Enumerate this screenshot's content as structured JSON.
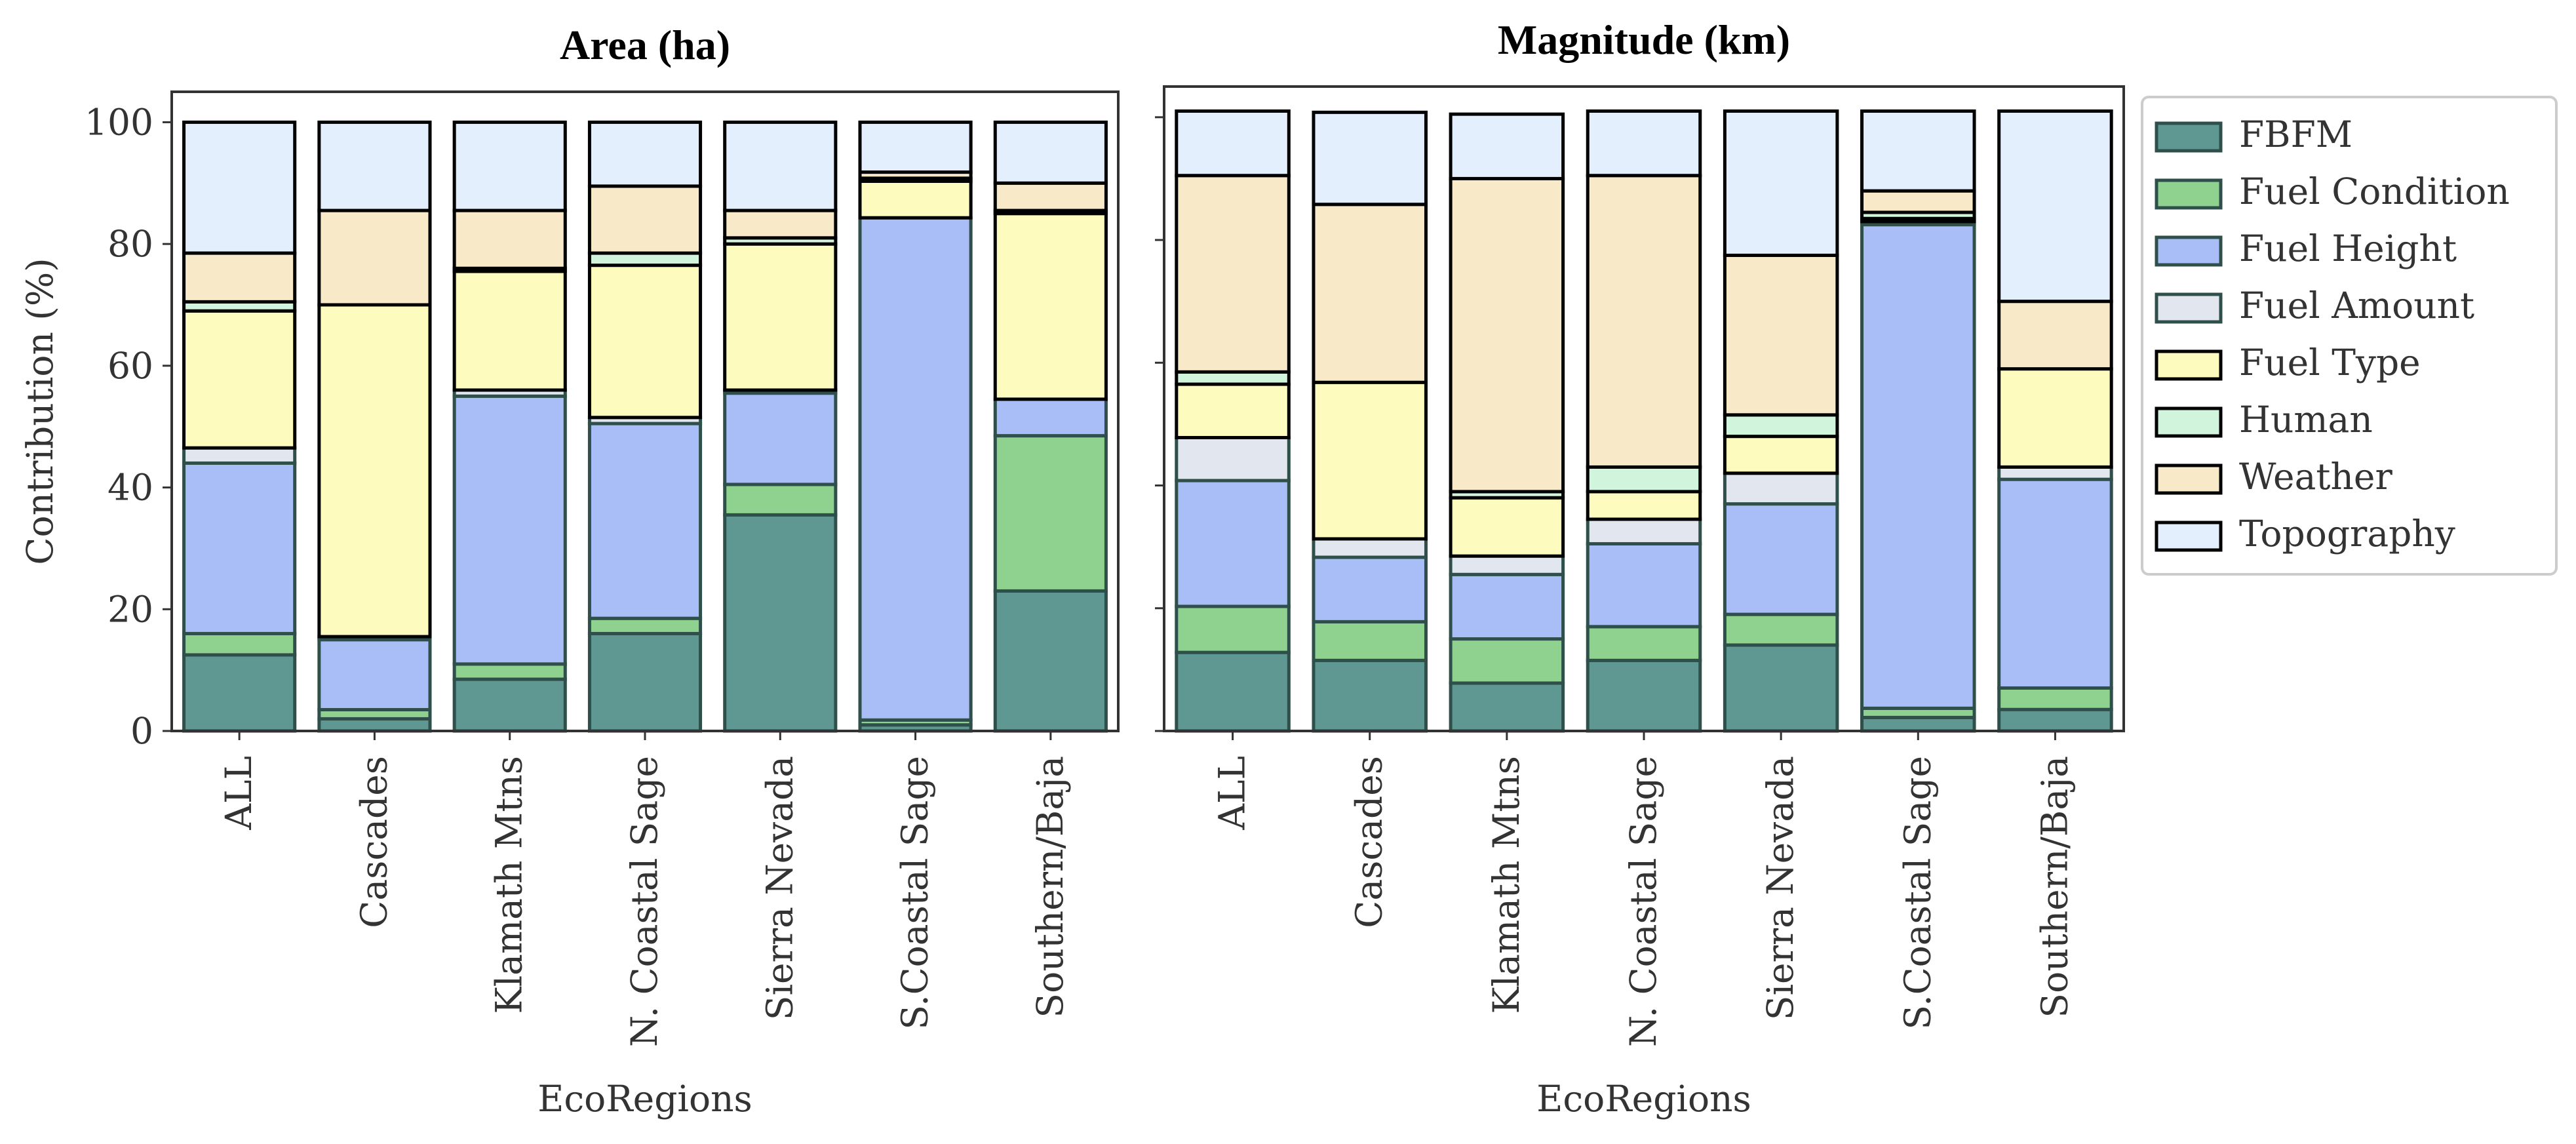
{
  "chart_data": [
    {
      "type": "bar",
      "stacked": true,
      "title": "Area (ha)",
      "xlabel": "EcoRegions",
      "ylabel": "Contribution (%)",
      "ylim": [
        0,
        105
      ],
      "yticks": [
        0,
        20,
        40,
        60,
        80,
        100
      ],
      "grid": false,
      "categories": [
        "ALL",
        "Cascades",
        "Klamath Mtns",
        "N. Coastal Sage",
        "Sierra Nevada",
        "S.Coastal Sage",
        "Southern/Baja"
      ],
      "series": [
        {
          "name": "FBFM",
          "values": [
            12.5,
            2.0,
            8.5,
            16.0,
            35.5,
            1.0,
            23.0
          ]
        },
        {
          "name": "Fuel Condition",
          "values": [
            3.5,
            1.5,
            2.5,
            2.5,
            5.0,
            0.8,
            25.5
          ]
        },
        {
          "name": "Fuel Height",
          "values": [
            28.0,
            11.5,
            44.0,
            32.0,
            15.0,
            82.5,
            6.0
          ]
        },
        {
          "name": "Fuel Amount",
          "values": [
            2.5,
            0.5,
            1.0,
            1.0,
            0.5,
            0.0,
            0.0
          ]
        },
        {
          "name": "Fuel Type",
          "values": [
            22.5,
            54.5,
            19.5,
            25.0,
            24.0,
            6.0,
            30.5
          ]
        },
        {
          "name": "Human",
          "values": [
            1.5,
            0.0,
            0.5,
            2.0,
            1.0,
            0.5,
            0.5
          ]
        },
        {
          "name": "Weather",
          "values": [
            8.0,
            15.5,
            9.5,
            11.0,
            4.5,
            1.0,
            4.5
          ]
        },
        {
          "name": "Topography",
          "values": [
            21.5,
            14.5,
            14.5,
            10.5,
            14.5,
            8.2,
            10.0
          ]
        }
      ]
    },
    {
      "type": "bar",
      "stacked": true,
      "title": "Magnitude (km)",
      "xlabel": "EcoRegions",
      "ylabel": "",
      "ylim": [
        0,
        105
      ],
      "yticks": [
        0,
        20,
        40,
        60,
        80,
        100
      ],
      "grid": false,
      "categories": [
        "ALL",
        "Cascades",
        "Klamath Mtns",
        "N. Coastal Sage",
        "Sierra Nevada",
        "S.Coastal Sage",
        "Southern/Baja"
      ],
      "series": [
        {
          "name": "FBFM",
          "values": [
            12.8,
            11.5,
            7.8,
            11.5,
            14.0,
            2.2,
            3.5
          ]
        },
        {
          "name": "Fuel Condition",
          "values": [
            7.5,
            6.3,
            7.2,
            5.5,
            5.0,
            1.5,
            3.5
          ]
        },
        {
          "name": "Fuel Height",
          "values": [
            20.5,
            10.5,
            10.5,
            13.5,
            18.0,
            78.8,
            34.0
          ]
        },
        {
          "name": "Fuel Amount",
          "values": [
            7.0,
            3.0,
            3.0,
            4.0,
            5.0,
            0.5,
            2.0
          ]
        },
        {
          "name": "Fuel Type",
          "values": [
            8.7,
            25.5,
            9.5,
            4.5,
            6.0,
            0.5,
            16.0
          ]
        },
        {
          "name": "Human",
          "values": [
            2.0,
            0.0,
            1.0,
            4.0,
            3.5,
            1.0,
            0.0
          ]
        },
        {
          "name": "Weather",
          "values": [
            32.0,
            29.0,
            51.0,
            47.5,
            26.0,
            3.5,
            11.0
          ]
        },
        {
          "name": "Topography",
          "values": [
            10.5,
            15.0,
            10.5,
            10.5,
            23.5,
            13.0,
            31.0
          ]
        }
      ]
    }
  ],
  "legend": {
    "placement": "right",
    "items": [
      {
        "label": "FBFM",
        "color": "#5f9893",
        "edge": "#2f4f4a"
      },
      {
        "label": "Fuel Condition",
        "color": "#8fd28f",
        "edge": "#2f4f4a"
      },
      {
        "label": "Fuel Height",
        "color": "#a9bdf6",
        "edge": "#2f4f4a"
      },
      {
        "label": "Fuel Amount",
        "color": "#e2e6ee",
        "edge": "#2f4f4a"
      },
      {
        "label": "Fuel Type",
        "color": "#fdfcbe",
        "edge": "#000000"
      },
      {
        "label": "Human",
        "color": "#d1f5dc",
        "edge": "#000000"
      },
      {
        "label": "Weather",
        "color": "#f8e9c9",
        "edge": "#000000"
      },
      {
        "label": "Topography",
        "color": "#e3effd",
        "edge": "#000000"
      }
    ]
  }
}
